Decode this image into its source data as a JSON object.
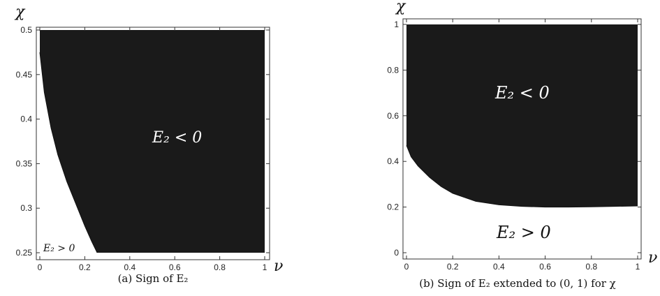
{
  "chart_data": [
    {
      "type": "area",
      "caption": "(a) Sign of E₂",
      "xlabel": "ν",
      "ylabel": "χ",
      "xlim": [
        0,
        1
      ],
      "ylim": [
        0.25,
        0.5
      ],
      "xticks": [
        "0",
        "0.2",
        "0.4",
        "0.6",
        "0.8",
        "1"
      ],
      "yticks": [
        "0.25",
        "0.3",
        "0.35",
        "0.4",
        "0.45",
        "0.5"
      ],
      "region_negative_label": "E₂ < 0",
      "region_positive_label": "E₂ > 0",
      "boundary": {
        "x": [
          0.0,
          0.02,
          0.05,
          0.08,
          0.12,
          0.16,
          0.2,
          0.23,
          0.255
        ],
        "y": [
          0.475,
          0.43,
          0.39,
          0.36,
          0.33,
          0.305,
          0.28,
          0.263,
          0.25
        ]
      },
      "negative_region_color": "#1a1a1a",
      "positive_region_color": "#ffffff"
    },
    {
      "type": "area",
      "caption": "(b) Sign of E₂ extended to (0, 1) for χ",
      "xlabel": "ν",
      "ylabel": "χ",
      "xlim": [
        0,
        1
      ],
      "ylim": [
        0,
        1
      ],
      "xticks": [
        "0",
        "0.2",
        "0.4",
        "0.6",
        "0.8",
        "1"
      ],
      "yticks": [
        "0",
        "0.2",
        "0.4",
        "0.6",
        "0.8",
        "1"
      ],
      "region_negative_label": "E₂ < 0",
      "region_positive_label": "E₂ > 0",
      "boundary": {
        "x": [
          0.0,
          0.02,
          0.05,
          0.1,
          0.15,
          0.2,
          0.3,
          0.4,
          0.5,
          0.6,
          0.7,
          0.8,
          0.9,
          1.0
        ],
        "y": [
          0.47,
          0.42,
          0.38,
          0.33,
          0.29,
          0.26,
          0.225,
          0.21,
          0.203,
          0.2,
          0.2,
          0.201,
          0.203,
          0.205
        ]
      },
      "negative_region_color": "#1a1a1a",
      "positive_region_color": "#ffffff"
    }
  ]
}
